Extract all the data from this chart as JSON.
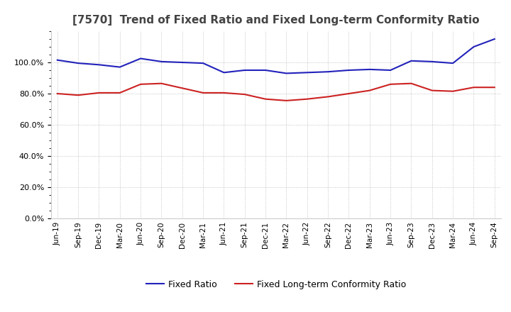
{
  "title": "[7570]  Trend of Fixed Ratio and Fixed Long-term Conformity Ratio",
  "x_labels": [
    "Jun-19",
    "Sep-19",
    "Dec-19",
    "Mar-20",
    "Jun-20",
    "Sep-20",
    "Dec-20",
    "Mar-21",
    "Jun-21",
    "Sep-21",
    "Dec-21",
    "Mar-22",
    "Jun-22",
    "Sep-22",
    "Dec-22",
    "Mar-23",
    "Jun-23",
    "Sep-23",
    "Dec-23",
    "Mar-24",
    "Jun-24",
    "Sep-24"
  ],
  "fixed_ratio": [
    101.5,
    99.5,
    98.5,
    97.0,
    102.5,
    100.5,
    100.0,
    99.5,
    93.5,
    95.0,
    95.0,
    93.0,
    93.5,
    94.0,
    95.0,
    95.5,
    95.0,
    101.0,
    100.5,
    99.5,
    110.0,
    115.0
  ],
  "fixed_lt_ratio": [
    80.0,
    79.0,
    80.5,
    80.5,
    86.0,
    86.5,
    83.5,
    80.5,
    80.5,
    79.5,
    76.5,
    75.5,
    76.5,
    78.0,
    80.0,
    82.0,
    86.0,
    86.5,
    82.0,
    81.5,
    84.0,
    84.0
  ],
  "fixed_ratio_color": "#2222bb",
  "fixed_lt_ratio_color": "#cc2222",
  "ylim": [
    0,
    120
  ],
  "yticks": [
    0,
    20,
    40,
    60,
    80,
    100
  ],
  "background_color": "#ffffff",
  "grid_color": "#999999",
  "title_fontsize": 11,
  "legend_fixed": "Fixed Ratio",
  "legend_fixed_lt": "Fixed Long-term Conformity Ratio"
}
